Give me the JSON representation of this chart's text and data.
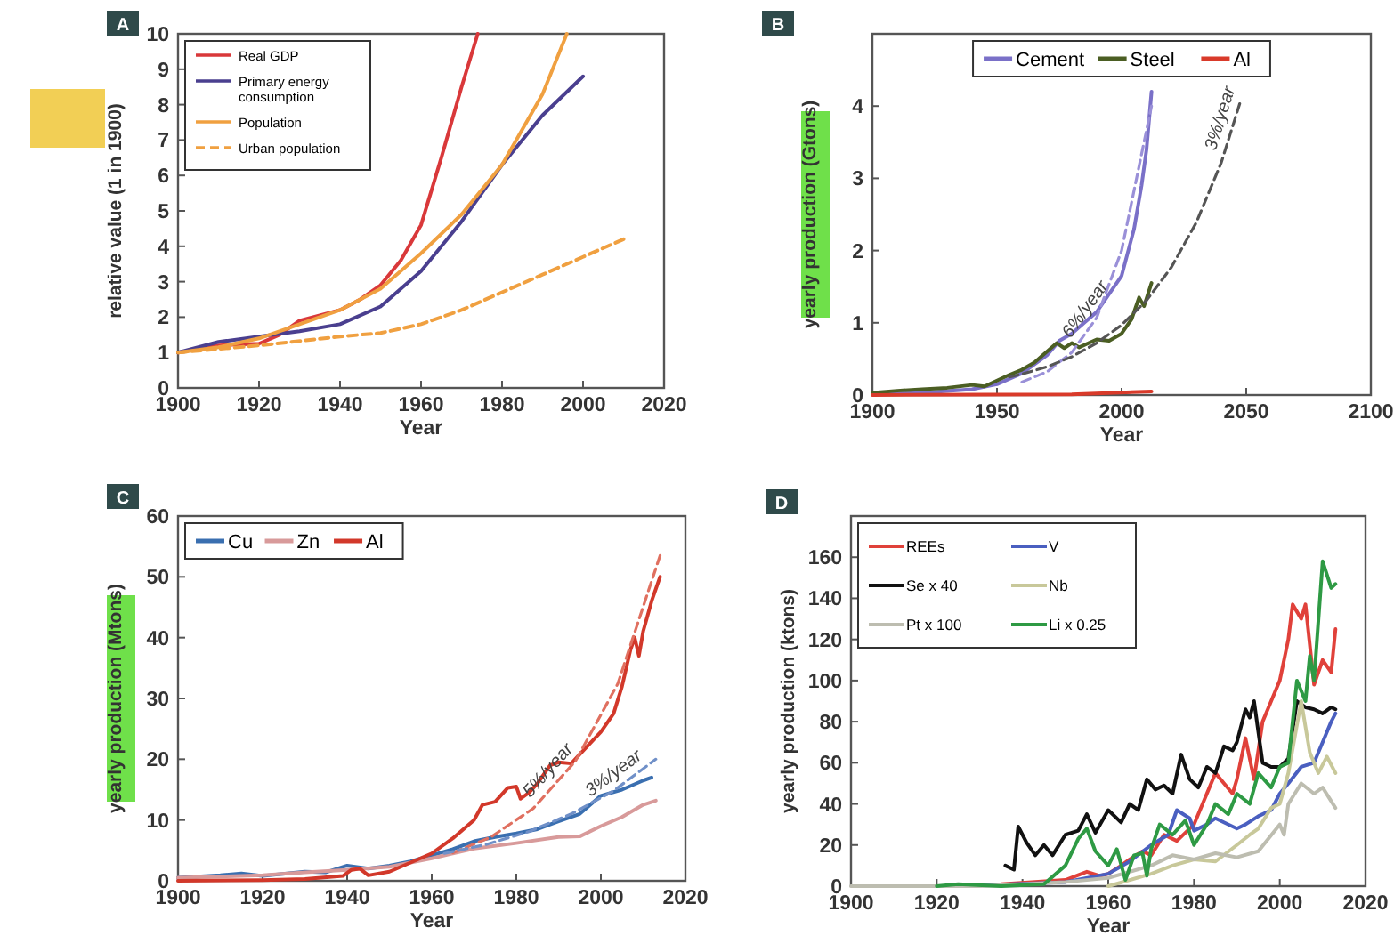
{
  "chart_data": [
    {
      "type": "line",
      "title": "A",
      "xlabel": "Year",
      "ylabel": "relative value (1 in 1900)",
      "xlim": [
        1900,
        2020
      ],
      "ylim": [
        0,
        10
      ],
      "xticks": [
        1900,
        1920,
        1940,
        1960,
        1980,
        2000,
        2020
      ],
      "yticks": [
        0,
        1,
        2,
        3,
        4,
        5,
        6,
        7,
        8,
        9,
        10
      ],
      "grid": false,
      "legend": "top left",
      "series": [
        {
          "name": "Real GDP",
          "color": "#d9383a",
          "x": [
            1900,
            1910,
            1920,
            1925,
            1930,
            1940,
            1945,
            1950,
            1955,
            1960,
            1965,
            1970,
            1974
          ],
          "values": [
            1,
            1.2,
            1.25,
            1.5,
            1.9,
            2.2,
            2.5,
            2.9,
            3.6,
            4.6,
            6.5,
            8.5,
            10
          ]
        },
        {
          "name": "Primary energy consumption",
          "color": "#4a3f8f",
          "x": [
            1900,
            1910,
            1920,
            1930,
            1940,
            1950,
            1960,
            1970,
            1980,
            1990,
            2000
          ],
          "values": [
            1,
            1.3,
            1.45,
            1.6,
            1.8,
            2.3,
            3.3,
            4.7,
            6.3,
            7.7,
            8.8
          ]
        },
        {
          "name": "Population",
          "color": "#f0a040",
          "x": [
            1900,
            1910,
            1920,
            1930,
            1940,
            1950,
            1960,
            1970,
            1980,
            1990,
            1996
          ],
          "values": [
            1,
            1.15,
            1.4,
            1.8,
            2.2,
            2.8,
            3.8,
            4.9,
            6.3,
            8.3,
            10
          ]
        },
        {
          "name": "Urban population",
          "color": "#f0a040",
          "line_style": "dashed",
          "x": [
            1900,
            1920,
            1940,
            1950,
            1960,
            1970,
            1980,
            1990,
            2000,
            2010
          ],
          "values": [
            1,
            1.2,
            1.45,
            1.55,
            1.8,
            2.2,
            2.7,
            3.2,
            3.7,
            4.2
          ]
        }
      ]
    },
    {
      "type": "line",
      "title": "B",
      "xlabel": "Year",
      "ylabel": "yearly production (Gtons)",
      "xlim": [
        1900,
        2100
      ],
      "ylim": [
        0,
        5
      ],
      "xticks": [
        1900,
        1950,
        2000,
        2050,
        2100
      ],
      "yticks": [
        0,
        1,
        2,
        3,
        4
      ],
      "grid": false,
      "legend": "top",
      "annotations": [
        {
          "text": "6%/year",
          "x": 1990,
          "y": 1.07
        },
        {
          "text": "3%/year",
          "x": 2045,
          "y": 3.77
        }
      ],
      "series": [
        {
          "name": "Cement",
          "color": "#7a70c8",
          "x": [
            1900,
            1920,
            1940,
            1950,
            1960,
            1970,
            1975,
            1980,
            1985,
            1990,
            1995,
            2000,
            2005,
            2008,
            2010,
            2012
          ],
          "values": [
            0.01,
            0.03,
            0.08,
            0.15,
            0.3,
            0.55,
            0.75,
            0.85,
            1.0,
            1.15,
            1.4,
            1.65,
            2.3,
            2.9,
            3.4,
            4.2
          ]
        },
        {
          "name": "Steel",
          "color": "#4b5e23",
          "x": [
            1900,
            1910,
            1920,
            1930,
            1940,
            1945,
            1950,
            1955,
            1960,
            1965,
            1970,
            1974,
            1977,
            1980,
            1983,
            1990,
            1995,
            2000,
            2004,
            2007,
            2009,
            2012
          ],
          "values": [
            0.03,
            0.06,
            0.08,
            0.1,
            0.14,
            0.12,
            0.2,
            0.28,
            0.35,
            0.45,
            0.6,
            0.72,
            0.65,
            0.72,
            0.66,
            0.77,
            0.75,
            0.85,
            1.05,
            1.35,
            1.23,
            1.55
          ]
        },
        {
          "name": "Al",
          "color": "#d93a2a",
          "x": [
            1900,
            1980,
            2012
          ],
          "values": [
            0,
            0.01,
            0.05
          ]
        },
        {
          "color": "#9a90d8",
          "line_style": "dashed",
          "x": [
            1960,
            1970,
            1980,
            1990,
            2000,
            2012
          ],
          "values": [
            0.18,
            0.32,
            0.59,
            1.07,
            2.0,
            4.0
          ]
        },
        {
          "color": "#555555",
          "line_style": "dashed",
          "x": [
            1955,
            1960,
            1970,
            1980,
            1990,
            2000,
            2010,
            2020,
            2030,
            2040,
            2048
          ],
          "values": [
            0.25,
            0.29,
            0.39,
            0.53,
            0.72,
            0.97,
            1.31,
            1.77,
            2.39,
            3.22,
            4.1
          ]
        }
      ]
    },
    {
      "type": "line",
      "title": "C",
      "xlabel": "Year",
      "ylabel": "yearly production (Mtons)",
      "xlim": [
        1900,
        2020
      ],
      "ylim": [
        0,
        60
      ],
      "xticks": [
        1900,
        1920,
        1940,
        1960,
        1980,
        2000,
        2020
      ],
      "yticks": [
        0,
        10,
        20,
        30,
        40,
        50,
        60
      ],
      "grid": false,
      "legend": "top left",
      "annotations": [
        {
          "text": "5%/year",
          "x": 1990,
          "y": 16.6
        },
        {
          "text": "3%/year",
          "x": 2005,
          "y": 15.8
        }
      ],
      "series": [
        {
          "name": "Cu",
          "color": "#3a6fb0",
          "x": [
            1900,
            1910,
            1915,
            1920,
            1930,
            1935,
            1940,
            1945,
            1950,
            1955,
            1960,
            1965,
            1970,
            1975,
            1980,
            1985,
            1990,
            1995,
            2000,
            2005,
            2010,
            2012
          ],
          "values": [
            0.5,
            0.9,
            1.2,
            0.8,
            1.5,
            1.4,
            2.5,
            2.0,
            2.5,
            3.2,
            4.2,
            5.2,
            6.5,
            7.2,
            7.8,
            8.5,
            9.8,
            11,
            14,
            15,
            16.5,
            17
          ]
        },
        {
          "name": "Zn",
          "color": "#d89a9a",
          "x": [
            1900,
            1920,
            1930,
            1940,
            1950,
            1960,
            1970,
            1980,
            1990,
            1995,
            2000,
            2005,
            2010,
            2013
          ],
          "values": [
            0.5,
            0.9,
            1.4,
            1.8,
            2.3,
            3.7,
            5.3,
            6.2,
            7.2,
            7.3,
            9,
            10.5,
            12.5,
            13.2
          ]
        },
        {
          "name": "Al",
          "color": "#d2382a",
          "x": [
            1900,
            1920,
            1930,
            1939,
            1941,
            1943,
            1945,
            1950,
            1955,
            1960,
            1965,
            1970,
            1972,
            1975,
            1978,
            1980,
            1981,
            1983,
            1985,
            1988,
            1990,
            1993,
            1995,
            2000,
            2003,
            2005,
            2007,
            2008,
            2009,
            2010,
            2012,
            2014
          ],
          "values": [
            0,
            0.1,
            0.3,
            0.8,
            1.8,
            2.0,
            0.9,
            1.5,
            3.0,
            4.5,
            7,
            10,
            12.5,
            13,
            15.3,
            15.5,
            13.5,
            14.5,
            16,
            19,
            19.5,
            19.3,
            20.8,
            24.5,
            27.5,
            32,
            38,
            40,
            37,
            41,
            46,
            50
          ]
        },
        {
          "color": "#e07060",
          "line_style": "dashed",
          "x": [
            1965,
            1974,
            1984,
            1994,
            2004,
            2014
          ],
          "values": [
            4.6,
            7.2,
            11.9,
            19.7,
            32.4,
            53.5
          ]
        },
        {
          "color": "#7090c8",
          "line_style": "dashed",
          "x": [
            1963,
            1973,
            1983,
            1993,
            2003,
            2013
          ],
          "values": [
            4.5,
            6.0,
            8.1,
            11,
            14.8,
            20
          ]
        }
      ]
    },
    {
      "type": "line",
      "title": "D",
      "xlabel": "Year",
      "ylabel": "yearly production (ktons)",
      "xlim": [
        1900,
        2020
      ],
      "ylim": [
        0,
        180
      ],
      "xticks": [
        1900,
        1920,
        1940,
        1960,
        1980,
        2000,
        2020
      ],
      "yticks": [
        0,
        20,
        40,
        60,
        80,
        100,
        120,
        140,
        160
      ],
      "grid": false,
      "legend": "top left",
      "series": [
        {
          "name": "REEs",
          "color": "#e0413a",
          "x": [
            1935,
            1950,
            1955,
            1958,
            1960,
            1963,
            1965,
            1968,
            1970,
            1973,
            1976,
            1980,
            1982,
            1985,
            1987,
            1989,
            1990,
            1992,
            1994,
            1996,
            1998,
            2000,
            2002,
            2003,
            2005,
            2006,
            2008,
            2010,
            2012,
            2013
          ],
          "values": [
            1,
            3,
            7,
            5,
            6,
            10,
            13,
            17,
            15,
            25,
            22,
            30,
            40,
            55,
            50,
            45,
            52,
            72,
            52,
            80,
            90,
            100,
            120,
            137,
            130,
            137,
            98,
            110,
            104,
            125
          ]
        },
        {
          "name": "V",
          "color": "#4a5fc0",
          "x": [
            1925,
            1950,
            1960,
            1965,
            1970,
            1974,
            1976,
            1979,
            1980,
            1983,
            1985,
            1990,
            1992,
            1995,
            1998,
            2000,
            2002,
            2005,
            2008,
            2010,
            2012,
            2013
          ],
          "values": [
            0,
            2,
            6,
            12,
            20,
            25,
            37,
            33,
            27,
            30,
            33,
            28,
            30,
            34,
            37,
            45,
            50,
            58,
            60,
            70,
            80,
            84
          ]
        },
        {
          "name": "Se x 40",
          "color": "#111111",
          "x": [
            1936,
            1938,
            1939,
            1941,
            1943,
            1945,
            1947,
            1950,
            1953,
            1955,
            1957,
            1960,
            1963,
            1965,
            1967,
            1969,
            1971,
            1973,
            1975,
            1977,
            1979,
            1981,
            1983,
            1985,
            1987,
            1989,
            1990,
            1992,
            1993,
            1994,
            1996,
            1998,
            2000,
            2002,
            2004,
            2006,
            2008,
            2010,
            2012,
            2013
          ],
          "values": [
            10,
            8,
            29,
            21,
            15,
            20,
            15,
            25,
            27,
            35,
            26,
            37,
            31,
            40,
            37,
            52,
            47,
            49,
            45,
            64,
            52,
            48,
            58,
            55,
            68,
            66,
            70,
            86,
            82,
            90,
            60,
            58,
            58,
            62,
            90,
            87,
            86,
            84,
            87,
            86
          ]
        },
        {
          "name": "Nb",
          "color": "#c8c89a",
          "x": [
            1960,
            1965,
            1970,
            1975,
            1980,
            1985,
            1990,
            1993,
            1995,
            1998,
            2000,
            2002,
            2005,
            2007,
            2009,
            2011,
            2013
          ],
          "values": [
            0,
            3,
            6,
            10,
            13,
            12,
            20,
            25,
            28,
            38,
            40,
            55,
            90,
            65,
            55,
            63,
            55
          ]
        },
        {
          "name": "Pt x 100",
          "color": "#bdbdb0",
          "x": [
            1900,
            1930,
            1950,
            1960,
            1965,
            1970,
            1975,
            1980,
            1985,
            1990,
            1995,
            2000,
            2001,
            2002,
            2005,
            2008,
            2010,
            2013
          ],
          "values": [
            0,
            0,
            2,
            4,
            7,
            10,
            15,
            13,
            16,
            14,
            17,
            30,
            25,
            40,
            50,
            45,
            48,
            38
          ]
        },
        {
          "name": "Li x 0.25",
          "color": "#2e9a44",
          "x": [
            1920,
            1925,
            1935,
            1945,
            1950,
            1953,
            1955,
            1957,
            1960,
            1962,
            1964,
            1966,
            1968,
            1969,
            1970,
            1972,
            1975,
            1978,
            1980,
            1983,
            1985,
            1988,
            1990,
            1993,
            1995,
            1998,
            2000,
            2002,
            2004,
            2006,
            2007,
            2008,
            2010,
            2012,
            2013
          ],
          "values": [
            0,
            1,
            0,
            1,
            10,
            23,
            28,
            17,
            10,
            18,
            3,
            15,
            16,
            5,
            18,
            30,
            25,
            32,
            20,
            30,
            40,
            35,
            45,
            40,
            55,
            48,
            58,
            60,
            100,
            90,
            112,
            100,
            158,
            145,
            147
          ]
        }
      ]
    }
  ]
}
